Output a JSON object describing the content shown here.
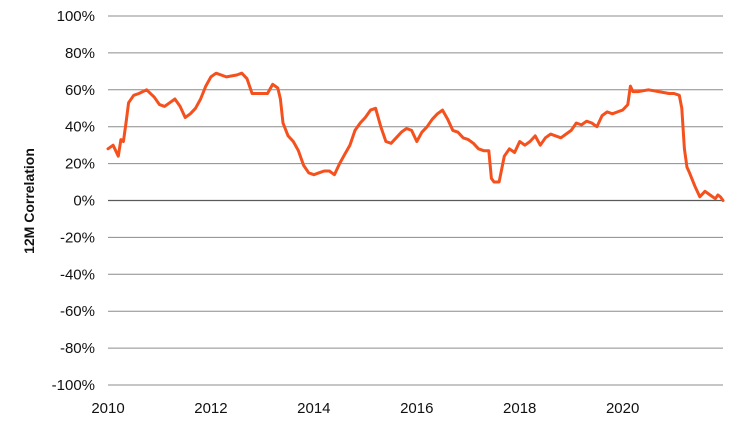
{
  "chart_data": {
    "type": "line",
    "title": "",
    "xlabel": "",
    "ylabel": "12M Correlation",
    "xlim": [
      2010,
      2021.95
    ],
    "ylim": [
      -100,
      100
    ],
    "x_ticks": [
      2010,
      2012,
      2014,
      2016,
      2018,
      2020
    ],
    "x_tick_labels": [
      "2010",
      "2012",
      "2014",
      "2016",
      "2018",
      "2020"
    ],
    "y_ticks": [
      100,
      80,
      60,
      40,
      20,
      0,
      -20,
      -40,
      -60,
      -80,
      -100
    ],
    "y_tick_labels": [
      "100%",
      "80%",
      "60%",
      "40%",
      "20%",
      "0%",
      "-20%",
      "-40%",
      "-60%",
      "-80%",
      "-100%"
    ],
    "grid": "horizontal",
    "legend": "none",
    "colors": {
      "series": "#F4511E",
      "grid": "#8c8c8c",
      "zero_line": "#5a5a5a"
    },
    "series": [
      {
        "x": [
          2010.0,
          2010.1,
          2010.15,
          2010.2,
          2010.25,
          2010.3,
          2010.35,
          2010.4,
          2010.5,
          2010.6,
          2010.75,
          2010.9,
          2011.0,
          2011.1,
          2011.2,
          2011.3,
          2011.4,
          2011.5,
          2011.6,
          2011.7,
          2011.8,
          2011.9,
          2012.0,
          2012.1,
          2012.3,
          2012.5,
          2012.6,
          2012.7,
          2012.8,
          2012.9,
          2013.0,
          2013.1,
          2013.2,
          2013.3,
          2013.35,
          2013.4,
          2013.5,
          2013.6,
          2013.7,
          2013.8,
          2013.9,
          2014.0,
          2014.1,
          2014.2,
          2014.3,
          2014.4,
          2014.5,
          2014.6,
          2014.7,
          2014.8,
          2014.9,
          2015.0,
          2015.1,
          2015.2,
          2015.25,
          2015.3,
          2015.4,
          2015.5,
          2015.6,
          2015.7,
          2015.8,
          2015.9,
          2016.0,
          2016.1,
          2016.2,
          2016.3,
          2016.4,
          2016.5,
          2016.6,
          2016.7,
          2016.8,
          2016.9,
          2017.0,
          2017.1,
          2017.2,
          2017.3,
          2017.4,
          2017.45,
          2017.5,
          2017.6,
          2017.7,
          2017.8,
          2017.9,
          2018.0,
          2018.1,
          2018.2,
          2018.3,
          2018.4,
          2018.5,
          2018.6,
          2018.7,
          2018.8,
          2018.9,
          2019.0,
          2019.1,
          2019.2,
          2019.3,
          2019.4,
          2019.5,
          2019.6,
          2019.7,
          2019.8,
          2019.9,
          2020.0,
          2020.1,
          2020.15,
          2020.2,
          2020.3,
          2020.5,
          2020.7,
          2020.9,
          2021.0,
          2021.1,
          2021.15,
          2021.2,
          2021.25,
          2021.3,
          2021.4,
          2021.5,
          2021.6,
          2021.7,
          2021.8,
          2021.85,
          2021.9,
          2021.95
        ],
        "y": [
          28,
          30,
          27,
          24,
          33,
          32,
          42,
          53,
          57,
          58,
          60,
          56,
          52,
          51,
          53,
          55,
          51,
          45,
          47,
          50,
          55,
          62,
          67,
          69,
          67,
          68,
          69,
          66,
          58,
          58,
          58,
          58,
          63,
          61,
          55,
          42,
          35,
          32,
          27,
          19,
          15,
          14,
          15,
          16,
          16,
          14,
          20,
          25,
          30,
          38,
          42,
          45,
          49,
          50,
          45,
          40,
          32,
          31,
          34,
          37,
          39,
          38,
          32,
          37,
          40,
          44,
          47,
          49,
          44,
          38,
          37,
          34,
          33,
          31,
          28,
          27,
          27,
          12,
          10,
          10,
          24,
          28,
          26,
          32,
          30,
          32,
          35,
          30,
          34,
          36,
          35,
          34,
          36,
          38,
          42,
          41,
          43,
          42,
          40,
          46,
          48,
          47,
          48,
          49,
          52,
          62,
          59,
          59,
          60,
          59,
          58,
          58,
          57,
          50,
          28,
          18,
          15,
          8,
          2,
          5,
          3,
          1,
          3,
          2,
          0
        ]
      }
    ]
  }
}
